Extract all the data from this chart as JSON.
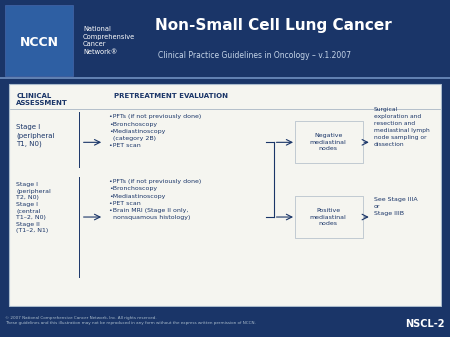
{
  "bg_color": "#1a3568",
  "header_bg": "#1a3568",
  "content_bg": "#f5f5f0",
  "nccn_box_color": "#2e5fa3",
  "title_text": "Non-Small Cell Lung Cancer",
  "subtitle_text": "Clinical Practice Guidelines in Oncology – v.1.2007",
  "nccn_label": "NCCN",
  "org_lines": [
    "National",
    "Comprehensive",
    "Cancer",
    "Network®"
  ],
  "section_header_left": "CLINICAL\nASSESSMENT",
  "section_header_right": "PRETREATMENT EVALUATION",
  "stage1_label": "Stage I\n(peripheral\nT1, N0)",
  "stage1_bullets": "•PFTs (if not previously done)\n•Bronchoscopy\n•Mediastinoscopy\n  (category 2B)\n•PET scan",
  "stage2_label": "Stage I\n(peripheral\nT2, N0)\nStage I\n(central\nT1–2, N0)\nStage II\n(T1–2, N1)",
  "stage2_bullets": "•PFTs (if not previously done)\n•Bronchoscopy\n•Mediastinoscopy\n•PET scan\n•Brain MRI (Stage II only,\n  nonsquamous histology)",
  "neg_node_label": "Negative\nmediastinal\nnodes",
  "pos_node_label": "Positive\nmediastinal\nnodes",
  "outcome1": "Surgical\nexploration and\nresection and\nmediastinal lymph\nnode sampling or\ndissection",
  "outcome2": "See Stage IIIA\nor\nStage IIIB",
  "footer_left": "© 2007 National Comprehensive Cancer Network, Inc. All rights reserved.\nThese guidelines and this illustration may not be reproduced in any form without the express written permission of NCCN.",
  "footer_right": "NSCL-2",
  "dark_navy": "#1a3568",
  "text_navy": "#1a3568",
  "arrow_color": "#1a3568",
  "header_line_color": "#7090c0",
  "box_border_color": "#9aaabb",
  "content_border_color": "#aabbcc"
}
